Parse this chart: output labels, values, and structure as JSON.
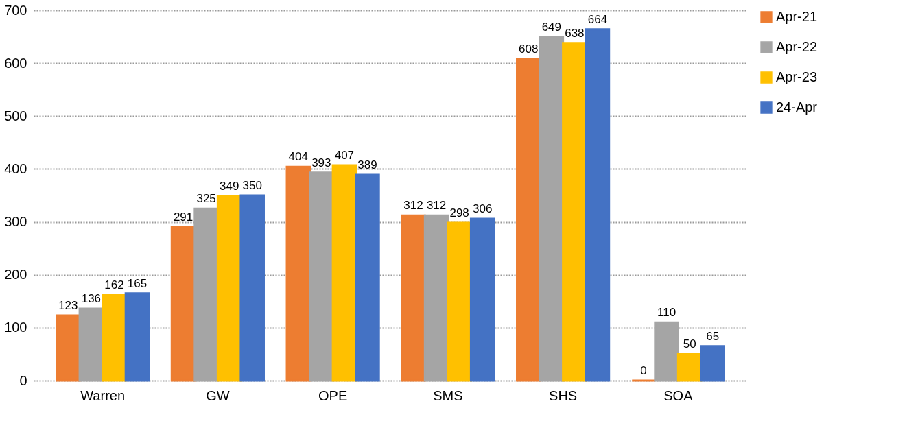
{
  "chart_data": {
    "type": "bar",
    "categories": [
      "Warren",
      "GW",
      "OPE",
      "SMS",
      "SHS",
      "SOA"
    ],
    "series": [
      {
        "name": "Apr-21",
        "color": "#ed7d31",
        "values": [
          123,
          291,
          404,
          312,
          608,
          0
        ]
      },
      {
        "name": "Apr-22",
        "color": "#a5a5a5",
        "values": [
          136,
          325,
          393,
          312,
          649,
          110
        ]
      },
      {
        "name": "Apr-23",
        "color": "#ffc000",
        "values": [
          162,
          349,
          407,
          298,
          638,
          50
        ]
      },
      {
        "name": "24-Apr",
        "color": "#4472c4",
        "values": [
          165,
          350,
          389,
          306,
          664,
          65
        ]
      }
    ],
    "ylim": [
      0,
      700
    ],
    "yticks": [
      0,
      100,
      200,
      300,
      400,
      500,
      600,
      700
    ],
    "grid": "y",
    "legend": "right",
    "data_labels": true
  }
}
